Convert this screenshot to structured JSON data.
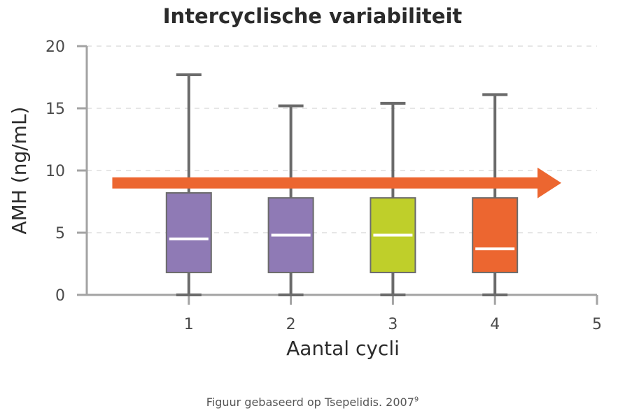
{
  "chart_data": {
    "type": "box",
    "title": "Intercyclische variabiliteit",
    "xlabel": "Aantal cycli",
    "ylabel": "AMH (ng/mL)",
    "xlim": [
      0,
      5
    ],
    "ylim": [
      0,
      20
    ],
    "x_ticks": [
      "1",
      "2",
      "3",
      "4",
      "5"
    ],
    "y_ticks": [
      "0",
      "5",
      "10",
      "15",
      "20"
    ],
    "grid": "horizontal dashed",
    "boxes": [
      {
        "x": 1,
        "min": 0,
        "q1": 1.8,
        "median": 4.5,
        "q3": 8.2,
        "max": 17.7,
        "color": "#8f7ab5"
      },
      {
        "x": 2,
        "min": 0,
        "q1": 1.8,
        "median": 4.8,
        "q3": 7.8,
        "max": 15.2,
        "color": "#8f7ab5"
      },
      {
        "x": 3,
        "min": 0,
        "q1": 1.8,
        "median": 4.8,
        "q3": 7.8,
        "max": 15.4,
        "color": "#bfcf2a"
      },
      {
        "x": 4,
        "min": 0,
        "q1": 1.8,
        "median": 3.7,
        "q3": 7.8,
        "max": 16.1,
        "color": "#ec6630"
      }
    ],
    "trend_arrow": {
      "from_x": 0.25,
      "to_x": 4.65,
      "y": 9.0,
      "color": "#ec6630"
    }
  },
  "caption": {
    "text": "Figuur gebaseerd op Tsepelidis. 2007",
    "ref": "9"
  },
  "colors": {
    "axis": "#a3a3a3",
    "whisker": "#6b6b6b",
    "grid": "#d6d6d6",
    "median": "#ffffff"
  }
}
